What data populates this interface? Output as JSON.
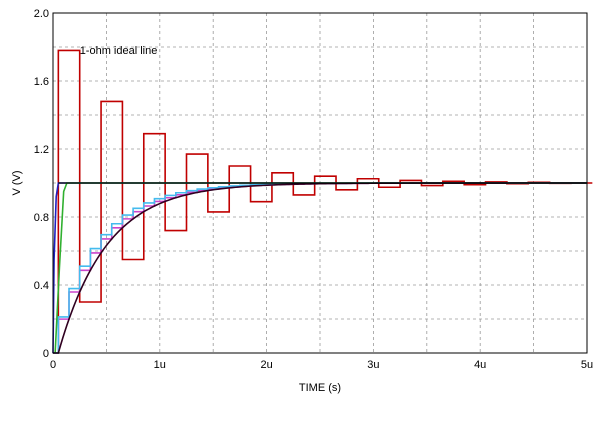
{
  "chart_data": {
    "type": "line",
    "xlabel": "TIME  (s)",
    "ylabel": "V  (V)",
    "xlim": [
      0,
      5
    ],
    "ylim": [
      0,
      2.0
    ],
    "x_unit": "u",
    "x_ticks": [
      0,
      1,
      2,
      3,
      4,
      5
    ],
    "x_tick_labels": [
      "0",
      "1u",
      "2u",
      "3u",
      "4u",
      "5u"
    ],
    "y_ticks": [
      0,
      0.4,
      0.8,
      1.2,
      1.6,
      2.0
    ],
    "y_tick_labels": [
      "0",
      "0.4",
      "0.8",
      "1.2",
      "1.6",
      "2.0"
    ],
    "grid": true,
    "grid_style": "dashed",
    "annotations": [
      {
        "text": "1-ohm ideal line",
        "x": 0.25,
        "y": 1.76
      }
    ],
    "series": [
      {
        "color": "#c00000",
        "kind": "step",
        "note": "ringing steps, period 0.2u, starting at t=0.05u",
        "t0": 0.05,
        "step": 0.2,
        "values": [
          0.0,
          1.78,
          0.3,
          1.48,
          0.55,
          1.29,
          0.72,
          1.17,
          0.83,
          1.1,
          0.89,
          1.06,
          0.93,
          1.04,
          0.96,
          1.025,
          0.975,
          1.015,
          0.985,
          1.01,
          0.99,
          1.006,
          0.996,
          1.004,
          0.998,
          1.0
        ]
      },
      {
        "color": "#cc44cc",
        "kind": "step",
        "note": "small staircase approaching 1.0",
        "t0": 0.05,
        "step": 0.1,
        "tau": 0.45,
        "count": 40
      },
      {
        "color": "#44bbee",
        "kind": "step",
        "note": "small staircase approaching 1.0",
        "t0": 0.05,
        "step": 0.1,
        "tau": 0.42,
        "count": 40
      },
      {
        "color": "#2020c0",
        "kind": "curve",
        "note": "fast rise near origin then flat at 1.0",
        "points": [
          [
            0,
            0
          ],
          [
            0.01,
            0.55
          ],
          [
            0.03,
            0.92
          ],
          [
            0.05,
            1.0
          ],
          [
            5.0,
            1.0
          ]
        ]
      },
      {
        "color": "#30b030",
        "kind": "curve",
        "note": "fast rise near origin then flat at 1.0",
        "points": [
          [
            0.02,
            0
          ],
          [
            0.06,
            0.5
          ],
          [
            0.1,
            0.95
          ],
          [
            0.13,
            1.0
          ],
          [
            5.0,
            1.0
          ]
        ]
      },
      {
        "color": "#300020",
        "kind": "exp",
        "note": "smooth RC charging curve",
        "t0": 0.05,
        "tau": 0.45
      },
      {
        "color": "#000000",
        "kind": "curve",
        "note": "flat line at 1.0",
        "points": [
          [
            0.05,
            1.0
          ],
          [
            5.0,
            1.0
          ]
        ]
      }
    ]
  }
}
